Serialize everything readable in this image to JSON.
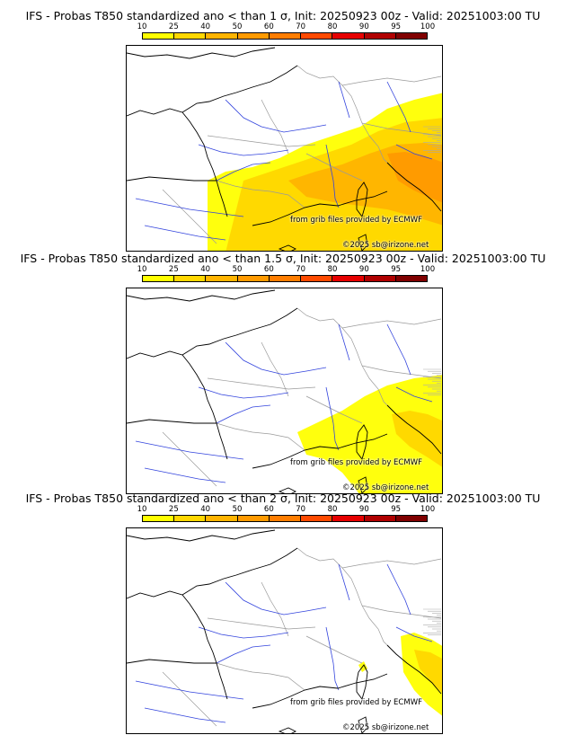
{
  "panels": [
    {
      "title": "IFS - Probas T850  standardized ano < than 1 σ, Init: 20250923 00z - Valid: 20251003:00 TU",
      "threshold_sigma": "1",
      "coverage": "large"
    },
    {
      "title": "IFS - Probas T850  standardized ano < than 1.5 σ, Init: 20250923 00z - Valid: 20251003:00 TU",
      "threshold_sigma": "1.5",
      "coverage": "medium"
    },
    {
      "title": "IFS - Probas T850  standardized ano < than 2 σ, Init: 20250923 00z - Valid: 20251003:00 TU",
      "threshold_sigma": "2",
      "coverage": "small"
    }
  ],
  "legend": {
    "ticks": [
      "10",
      "25",
      "40",
      "50",
      "60",
      "70",
      "80",
      "90",
      "95",
      "100"
    ],
    "colors": [
      "#ffff00",
      "#ffd700",
      "#ffb400",
      "#ff9a00",
      "#ff7d00",
      "#ff4a00",
      "#e60000",
      "#b00000",
      "#800000"
    ]
  },
  "credits": {
    "source": "from grib files provided by ECMWF",
    "copyright": "©2025 sb@irizone.net"
  },
  "map_colors": {
    "rivers": "#3344dd",
    "borders": "#9a9a9a",
    "coast": "#000000",
    "snow_hatch": "#aaaaaa"
  }
}
